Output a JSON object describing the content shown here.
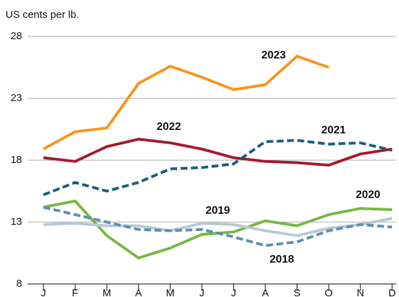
{
  "chart_data": {
    "type": "line",
    "y_axis_label": "US cents per lb.",
    "categories": [
      "J",
      "F",
      "M",
      "A",
      "M",
      "J",
      "J",
      "A",
      "S",
      "O",
      "N",
      "D"
    ],
    "ylim": [
      8,
      28
    ],
    "yticks": [
      8,
      13,
      18,
      23,
      28
    ],
    "series": [
      {
        "name": "2023",
        "color": "#f7941d",
        "dash": false,
        "values": [
          18.9,
          20.3,
          20.6,
          24.2,
          25.6,
          24.7,
          23.7,
          24.1,
          26.4,
          25.5,
          null,
          null
        ]
      },
      {
        "name": "2022",
        "color": "#a6192e",
        "dash": false,
        "values": [
          18.2,
          17.9,
          19.1,
          19.7,
          19.4,
          18.9,
          18.2,
          17.9,
          17.8,
          17.6,
          18.5,
          18.9
        ]
      },
      {
        "name": "2021",
        "color": "#1b5e7a",
        "dash": true,
        "values": [
          15.2,
          16.2,
          15.5,
          16.2,
          17.3,
          17.4,
          17.7,
          19.5,
          19.6,
          19.3,
          19.4,
          18.8
        ]
      },
      {
        "name": "2020",
        "color": "#78b843",
        "dash": false,
        "values": [
          14.2,
          14.7,
          11.9,
          10.1,
          10.9,
          12.0,
          12.2,
          13.1,
          12.7,
          13.6,
          14.1,
          14.0
        ]
      },
      {
        "name": "2019",
        "color": "#b8c9d4",
        "dash": false,
        "values": [
          12.8,
          12.9,
          12.7,
          12.7,
          12.3,
          12.9,
          12.8,
          12.3,
          11.9,
          12.5,
          12.8,
          13.3
        ]
      },
      {
        "name": "2018",
        "color": "#5e8fb0",
        "dash": true,
        "values": [
          14.2,
          13.6,
          13.0,
          12.4,
          12.3,
          12.4,
          11.8,
          11.1,
          11.4,
          12.3,
          12.8,
          12.6
        ]
      }
    ]
  }
}
